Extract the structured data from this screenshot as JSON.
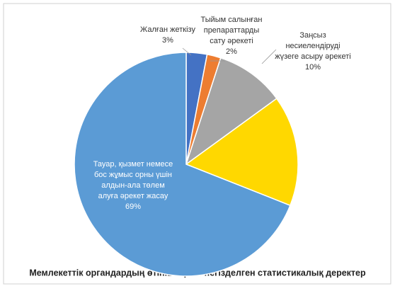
{
  "chart_data": {
    "type": "pie",
    "title": "Мемлекеттік органдардың өтініштеріне негізделген статистикалық деректер",
    "categories": [
      [
        "Жалған жеткізу"
      ],
      [
        "Тыйым салынған",
        "препараттарды",
        "сату әрекеті"
      ],
      [
        "Заңсыз",
        "несиелендіруді",
        "жүзеге асыру әрекеті"
      ],
      null,
      [
        "Тауар, қызмет немесе",
        "бос жұмыс орны үшін",
        "алдын-ала төлем",
        "алуға әрекет жасау"
      ]
    ],
    "values": [
      3,
      2,
      10,
      16,
      69
    ],
    "value_labels": [
      "3%",
      "2%",
      "10%",
      null,
      "69%"
    ],
    "colors": [
      "#4472c4",
      "#ed7d31",
      "#a5a5a5",
      "#ffd800",
      "#5b9bd5"
    ]
  }
}
